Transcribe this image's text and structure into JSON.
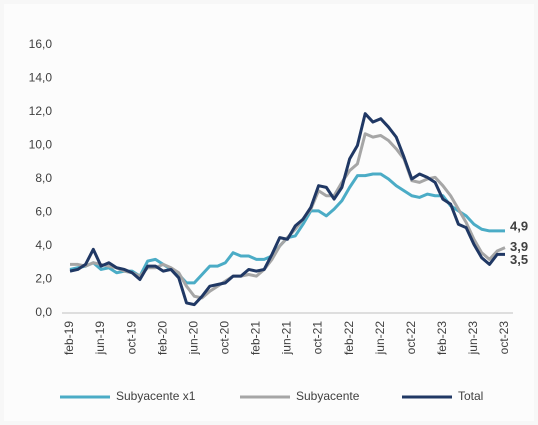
{
  "chart_data": {
    "type": "line",
    "categories": [
      "feb-19",
      null,
      null,
      null,
      "jun-19",
      null,
      null,
      null,
      "oct-19",
      null,
      null,
      null,
      "feb-20",
      null,
      null,
      null,
      "jun-20",
      null,
      null,
      null,
      "oct-20",
      null,
      null,
      null,
      "feb-21",
      null,
      null,
      null,
      "jun-21",
      null,
      null,
      null,
      "oct-21",
      null,
      null,
      null,
      "feb-22",
      null,
      null,
      null,
      "jun-22",
      null,
      null,
      null,
      "oct-22",
      null,
      null,
      null,
      "feb-23",
      null,
      null,
      null,
      "jun-23",
      null,
      null,
      null,
      "oct-23"
    ],
    "series": [
      {
        "name": "Subyacente x1",
        "color": "#4bacc6",
        "values": [
          2.6,
          2.7,
          2.8,
          3.0,
          2.6,
          2.7,
          2.4,
          2.5,
          2.5,
          2.2,
          3.1,
          3.2,
          2.9,
          2.6,
          2.3,
          1.8,
          1.8,
          2.3,
          2.8,
          2.8,
          3.0,
          3.6,
          3.4,
          3.4,
          3.2,
          3.2,
          3.4,
          4.0,
          4.5,
          4.6,
          5.3,
          6.1,
          6.1,
          5.8,
          6.2,
          6.7,
          7.5,
          8.2,
          8.2,
          8.3,
          8.3,
          8.0,
          7.6,
          7.3,
          7.0,
          6.9,
          7.1,
          7.0,
          7.0,
          6.4,
          6.1,
          5.8,
          5.3,
          5.0,
          4.9,
          4.9,
          4.9
        ],
        "value_labels": [
          null,
          null,
          null,
          null,
          null,
          null,
          null,
          null,
          null,
          null,
          null,
          null,
          null,
          null,
          null,
          null,
          null,
          null,
          null,
          null,
          null,
          null,
          null,
          null,
          null,
          null,
          null,
          null,
          null,
          null,
          null,
          null,
          null,
          null,
          null,
          null,
          null,
          null,
          null,
          null,
          null,
          null,
          null,
          null,
          null,
          null,
          null,
          null,
          null,
          null,
          null,
          null,
          null,
          null,
          null,
          null,
          "4,9"
        ]
      },
      {
        "name": "Subyacente",
        "color": "#a6a6a6",
        "values": [
          2.9,
          2.9,
          2.8,
          3.0,
          2.9,
          2.8,
          2.7,
          2.5,
          2.4,
          2.2,
          2.7,
          2.7,
          2.9,
          2.7,
          2.4,
          1.6,
          1.0,
          0.9,
          1.3,
          1.6,
          1.9,
          2.2,
          2.2,
          2.3,
          2.2,
          2.6,
          3.2,
          4.0,
          4.5,
          5.0,
          5.6,
          6.2,
          7.3,
          7.0,
          7.0,
          7.8,
          8.5,
          8.9,
          10.7,
          10.5,
          10.6,
          10.3,
          9.8,
          9.2,
          7.9,
          7.8,
          8.0,
          8.1,
          7.6,
          7.0,
          6.2,
          5.4,
          4.4,
          3.6,
          3.2,
          3.7,
          3.9
        ],
        "value_labels": [
          null,
          null,
          null,
          null,
          null,
          null,
          null,
          null,
          null,
          null,
          null,
          null,
          null,
          null,
          null,
          null,
          null,
          null,
          null,
          null,
          null,
          null,
          null,
          null,
          null,
          null,
          null,
          null,
          null,
          null,
          null,
          null,
          null,
          null,
          null,
          null,
          null,
          null,
          null,
          null,
          null,
          null,
          null,
          null,
          null,
          null,
          null,
          null,
          null,
          null,
          null,
          null,
          null,
          null,
          null,
          null,
          "3,9"
        ]
      },
      {
        "name": "Total",
        "color": "#203864",
        "values": [
          2.5,
          2.6,
          2.9,
          3.8,
          2.8,
          3.0,
          2.7,
          2.6,
          2.4,
          2.0,
          2.8,
          2.8,
          2.5,
          2.6,
          2.1,
          0.6,
          0.5,
          1.0,
          1.6,
          1.7,
          1.8,
          2.2,
          2.2,
          2.6,
          2.5,
          2.6,
          3.5,
          4.5,
          4.4,
          5.2,
          5.6,
          6.3,
          7.6,
          7.5,
          6.8,
          7.5,
          9.2,
          10.0,
          11.9,
          11.4,
          11.6,
          11.1,
          10.5,
          9.3,
          8.0,
          8.3,
          8.1,
          7.8,
          6.8,
          6.5,
          5.3,
          5.1,
          4.1,
          3.3,
          2.9,
          3.5,
          3.5
        ],
        "value_labels": [
          null,
          null,
          null,
          null,
          null,
          null,
          null,
          null,
          null,
          null,
          null,
          null,
          null,
          null,
          null,
          null,
          null,
          null,
          null,
          null,
          null,
          null,
          null,
          null,
          null,
          null,
          null,
          null,
          null,
          null,
          null,
          null,
          null,
          null,
          null,
          null,
          null,
          null,
          null,
          null,
          null,
          null,
          null,
          null,
          null,
          null,
          null,
          null,
          null,
          null,
          null,
          null,
          null,
          null,
          null,
          null,
          "3,5"
        ]
      }
    ],
    "ylim": [
      0,
      16
    ],
    "yticks": [
      {
        "value": 0,
        "label": "0,0"
      },
      {
        "value": 2,
        "label": "2,0"
      },
      {
        "value": 4,
        "label": "4,0"
      },
      {
        "value": 6,
        "label": "6,0"
      },
      {
        "value": 8,
        "label": "8,0"
      },
      {
        "value": 10,
        "label": "10,0"
      },
      {
        "value": 12,
        "label": "12,0"
      },
      {
        "value": 14,
        "label": "14,0"
      },
      {
        "value": 16,
        "label": "16,0"
      }
    ],
    "grid": false,
    "legend": "bottom"
  }
}
